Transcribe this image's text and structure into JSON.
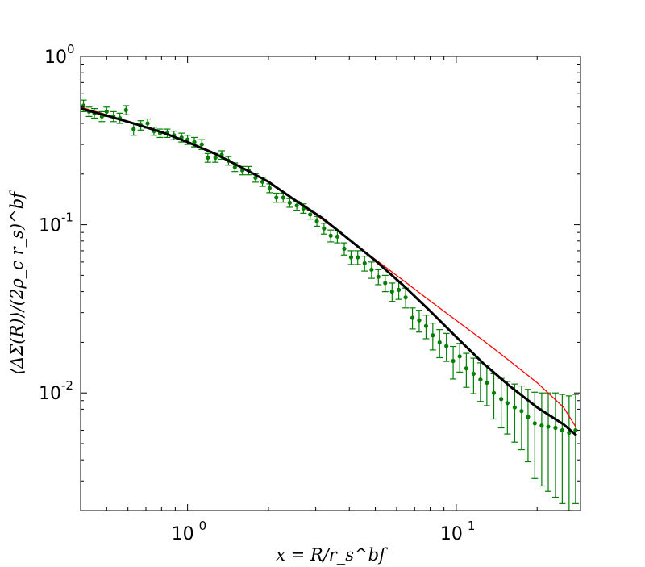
{
  "chart_data": {
    "type": "scatter",
    "xlabel": "x = R/r_s^bf",
    "ylabel": "⟨ΔΣ(R)⟩/(2ρ_c r_s)^bf",
    "x_scale": "log",
    "y_scale": "log",
    "xlim": [
      0.4,
      29
    ],
    "ylim": [
      0.002,
      1.0
    ],
    "grid": false,
    "x_ticks": [
      {
        "value": 1,
        "base": "10",
        "exp": "0"
      },
      {
        "value": 10,
        "base": "10",
        "exp": "1"
      }
    ],
    "y_ticks": [
      {
        "value": 1,
        "base": "10",
        "exp": "0"
      },
      {
        "value": 0.1,
        "base": "10",
        "exp": "-1"
      },
      {
        "value": 0.01,
        "base": "10",
        "exp": "-2"
      }
    ],
    "colors": {
      "points": "#007f00",
      "model_black": "#000000",
      "model_red": "#ff0000"
    },
    "series": [
      {
        "kind": "errorbar",
        "x": [
          0.41,
          0.43,
          0.45,
          0.48,
          0.5,
          0.53,
          0.56,
          0.59,
          0.63,
          0.67,
          0.71,
          0.75,
          0.79,
          0.84,
          0.89,
          0.95,
          1.0,
          1.06,
          1.13,
          1.19,
          1.27,
          1.34,
          1.42,
          1.5,
          1.6,
          1.69,
          1.79,
          1.9,
          2.02,
          2.14,
          2.27,
          2.4,
          2.55,
          2.7,
          2.86,
          3.03,
          3.22,
          3.41,
          3.61,
          3.83,
          4.06,
          4.3,
          4.56,
          4.84,
          5.13,
          5.44,
          5.77,
          6.11,
          6.48,
          6.87,
          7.28,
          7.72,
          8.18,
          8.67,
          9.19,
          9.74,
          10.3,
          10.9,
          11.6,
          12.3,
          13.0,
          13.8,
          14.7,
          15.5,
          16.5,
          17.5,
          18.5,
          19.6,
          20.8,
          22.0,
          23.4,
          24.8,
          26.3,
          27.8
        ],
        "y": [
          0.51,
          0.47,
          0.46,
          0.44,
          0.47,
          0.44,
          0.43,
          0.48,
          0.37,
          0.39,
          0.4,
          0.36,
          0.35,
          0.35,
          0.34,
          0.33,
          0.32,
          0.31,
          0.3,
          0.25,
          0.25,
          0.26,
          0.24,
          0.22,
          0.21,
          0.21,
          0.19,
          0.18,
          0.165,
          0.145,
          0.145,
          0.135,
          0.13,
          0.125,
          0.115,
          0.105,
          0.095,
          0.086,
          0.085,
          0.072,
          0.064,
          0.064,
          0.059,
          0.054,
          0.049,
          0.045,
          0.04,
          0.041,
          0.037,
          0.028,
          0.027,
          0.025,
          0.022,
          0.02,
          0.019,
          0.0155,
          0.0165,
          0.014,
          0.013,
          0.012,
          0.0115,
          0.01,
          0.0092,
          0.0087,
          0.0082,
          0.0078,
          0.0072,
          0.0066,
          0.0064,
          0.0063,
          0.0062,
          0.006,
          0.0058,
          0.006
        ],
        "yerr": [
          0.04,
          0.03,
          0.03,
          0.03,
          0.03,
          0.03,
          0.03,
          0.03,
          0.03,
          0.025,
          0.025,
          0.02,
          0.02,
          0.02,
          0.02,
          0.02,
          0.02,
          0.02,
          0.02,
          0.015,
          0.015,
          0.015,
          0.014,
          0.013,
          0.012,
          0.012,
          0.011,
          0.011,
          0.01,
          0.009,
          0.009,
          0.008,
          0.008,
          0.008,
          0.007,
          0.007,
          0.007,
          0.007,
          0.007,
          0.006,
          0.006,
          0.006,
          0.006,
          0.006,
          0.005,
          0.005,
          0.005,
          0.005,
          0.005,
          0.004,
          0.004,
          0.004,
          0.004,
          0.0038,
          0.0036,
          0.0034,
          0.0032,
          0.0032,
          0.0031,
          0.0031,
          0.0031,
          0.003,
          0.003,
          0.003,
          0.0031,
          0.0032,
          0.0033,
          0.0035,
          0.0036,
          0.0037,
          0.0038,
          0.0038,
          0.0038,
          0.0038
        ]
      },
      {
        "kind": "line",
        "x": [
          0.4,
          0.5,
          0.63,
          0.8,
          1.0,
          1.26,
          1.58,
          2.0,
          2.51,
          3.16,
          3.98,
          5.01,
          6.31,
          7.94,
          10.0,
          12.6,
          15.8,
          20.0,
          25.1,
          28.0
        ],
        "y": [
          0.49,
          0.445,
          0.4,
          0.355,
          0.31,
          0.265,
          0.22,
          0.18,
          0.14,
          0.11,
          0.082,
          0.061,
          0.044,
          0.031,
          0.0215,
          0.015,
          0.011,
          0.0082,
          0.0065,
          0.0056
        ]
      },
      {
        "kind": "line",
        "x": [
          0.4,
          0.5,
          0.63,
          0.8,
          1.0,
          1.26,
          1.58,
          2.0,
          2.51,
          3.16,
          3.98,
          5.01,
          6.31,
          7.94,
          10.0,
          12.6,
          15.8,
          20.0,
          25.1,
          28.0
        ],
        "y": [
          0.5,
          0.45,
          0.4,
          0.355,
          0.31,
          0.265,
          0.22,
          0.18,
          0.14,
          0.108,
          0.082,
          0.062,
          0.047,
          0.0355,
          0.027,
          0.0205,
          0.0155,
          0.0115,
          0.0082,
          0.0062
        ]
      }
    ]
  }
}
